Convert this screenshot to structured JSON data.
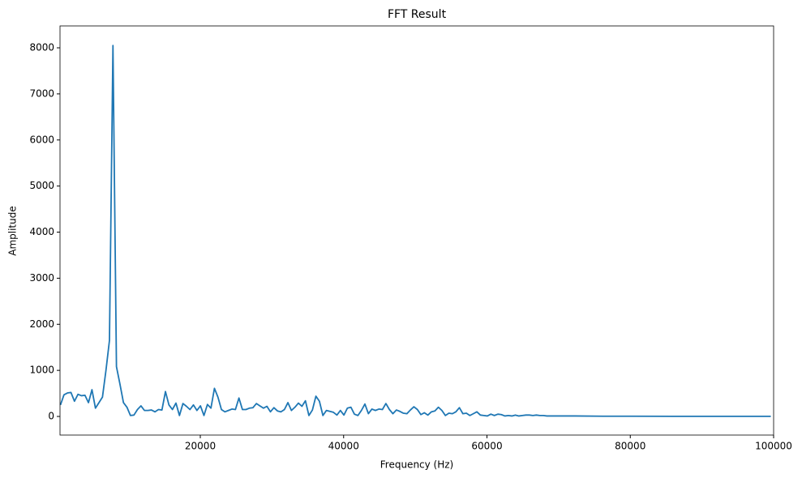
{
  "chart_data": {
    "type": "line",
    "title": "FFT Result",
    "x_label": "Frequency (Hz)",
    "y_label": "Amplitude",
    "x": [
      488,
      977,
      1465,
      1953,
      2441,
      2930,
      3418,
      3906,
      4395,
      4883,
      5371,
      5859,
      6348,
      6836,
      7324,
      7813,
      8301,
      8789,
      9277,
      9766,
      10254,
      10742,
      11230,
      11719,
      12207,
      12695,
      13184,
      13672,
      14160,
      14648,
      15137,
      15625,
      16113,
      16602,
      17090,
      17578,
      18066,
      18555,
      19043,
      19531,
      20020,
      20508,
      20996,
      21484,
      21973,
      22461,
      22949,
      23438,
      23926,
      24414,
      24902,
      25391,
      25879,
      26367,
      26855,
      27344,
      27832,
      28320,
      28809,
      29297,
      29785,
      30273,
      30762,
      31250,
      31738,
      32227,
      32715,
      33203,
      33691,
      34180,
      34668,
      35156,
      35645,
      36133,
      36621,
      37109,
      37598,
      38086,
      38574,
      39063,
      39551,
      40039,
      40527,
      41016,
      41504,
      41992,
      42480,
      42969,
      43457,
      43945,
      44434,
      44922,
      45410,
      45898,
      46387,
      46875,
      47363,
      47852,
      48340,
      48828,
      49316,
      49805,
      50293,
      50781,
      51270,
      51758,
      52246,
      52734,
      53223,
      53711,
      54199,
      54688,
      55176,
      55664,
      56152,
      56641,
      57129,
      57617,
      58105,
      58594,
      59082,
      59570,
      60059,
      60547,
      61035,
      61523,
      62012,
      62500,
      62988,
      63477,
      63965,
      64453,
      64941,
      65430,
      65918,
      66406,
      66895,
      67383,
      67871,
      68359,
      72266,
      76172,
      80078,
      85938,
      91797,
      99609
    ],
    "series": [
      {
        "name": "FFT",
        "color": "#1f77b4",
        "values": [
          250,
          470,
          510,
          520,
          330,
          480,
          450,
          460,
          300,
          580,
          180,
          300,
          420,
          1000,
          1650,
          8050,
          1080,
          700,
          300,
          200,
          20,
          30,
          150,
          230,
          130,
          130,
          140,
          100,
          150,
          140,
          540,
          250,
          150,
          290,
          20,
          280,
          220,
          150,
          250,
          130,
          230,
          20,
          260,
          180,
          610,
          420,
          150,
          100,
          130,
          160,
          150,
          400,
          150,
          150,
          180,
          190,
          280,
          230,
          180,
          220,
          100,
          190,
          120,
          100,
          150,
          300,
          130,
          200,
          290,
          220,
          340,
          20,
          140,
          440,
          330,
          20,
          130,
          110,
          90,
          30,
          130,
          30,
          180,
          200,
          50,
          20,
          130,
          270,
          60,
          160,
          130,
          160,
          150,
          280,
          150,
          60,
          140,
          110,
          70,
          60,
          140,
          210,
          150,
          40,
          80,
          30,
          100,
          120,
          200,
          130,
          20,
          70,
          60,
          100,
          190,
          60,
          70,
          20,
          60,
          100,
          30,
          20,
          10,
          50,
          20,
          50,
          40,
          10,
          20,
          10,
          30,
          10,
          20,
          30,
          30,
          20,
          30,
          20,
          20,
          10,
          10,
          5,
          5,
          3,
          3,
          2
        ]
      }
    ],
    "xlim": [
      424,
      100000
    ],
    "ylim": [
      -404,
      8475
    ],
    "xticks": [
      20000,
      40000,
      60000,
      80000,
      100000
    ],
    "yticks": [
      0,
      1000,
      2000,
      3000,
      4000,
      5000,
      6000,
      7000,
      8000
    ]
  }
}
